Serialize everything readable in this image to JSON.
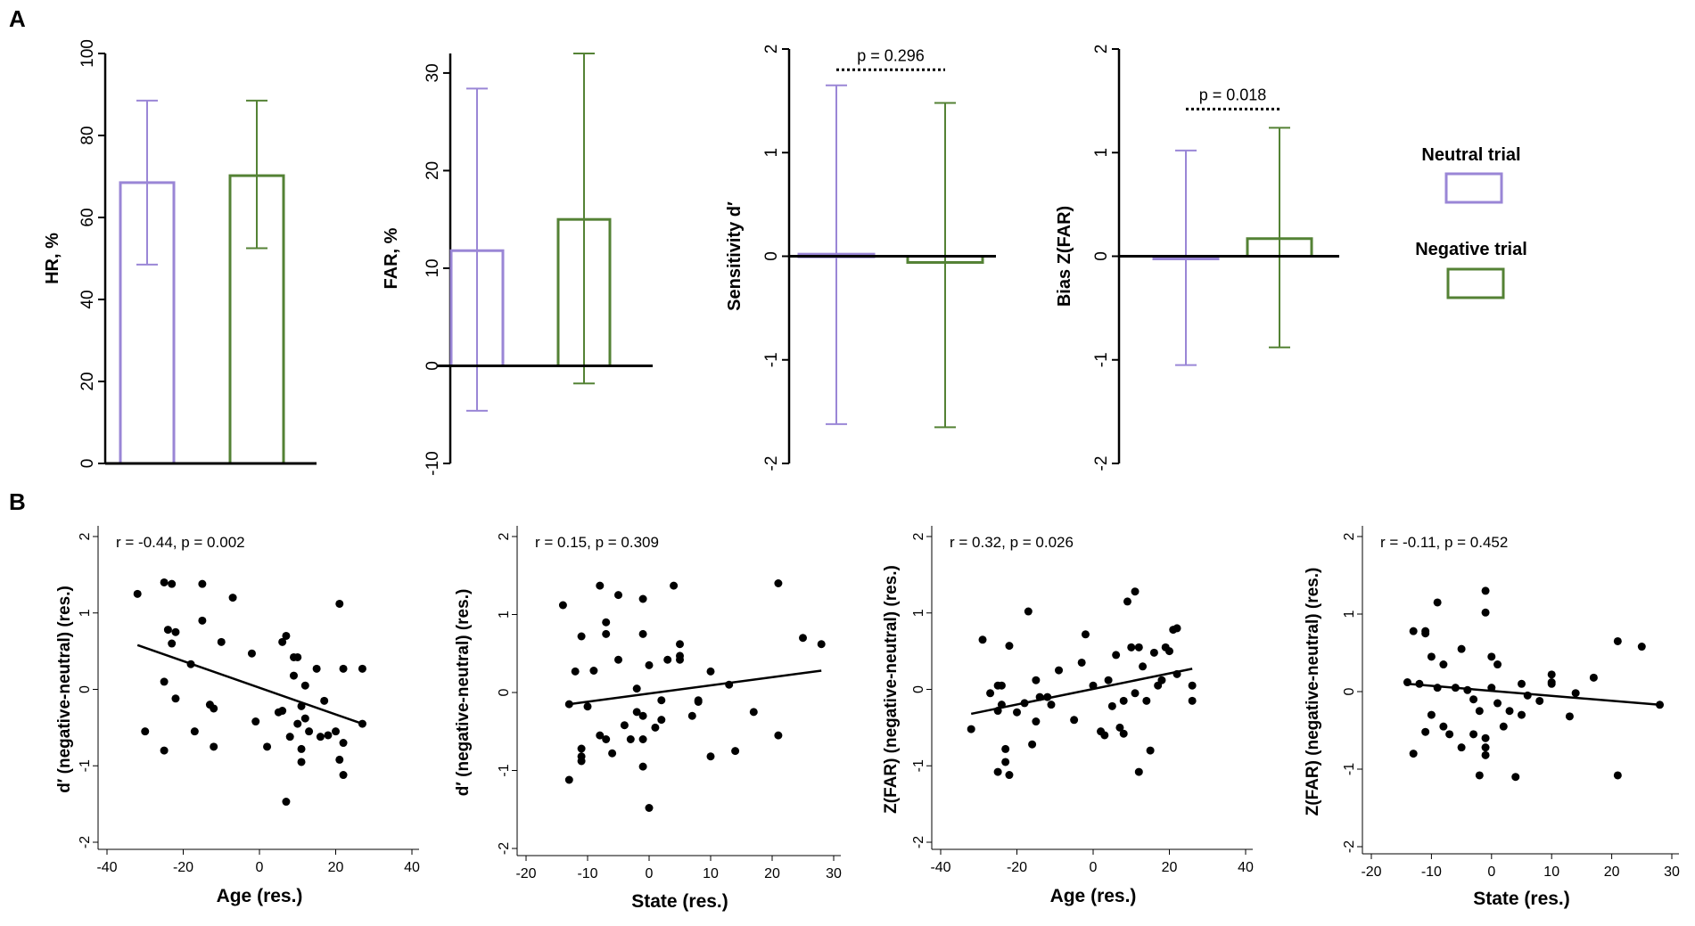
{
  "panel_labels": {
    "a": "A",
    "b": "B"
  },
  "legend": {
    "neutral": {
      "label": "Neutral trial",
      "color": "#9a86d6"
    },
    "negative": {
      "label": "Negative trial",
      "color": "#548235"
    }
  },
  "chart_data": [
    {
      "id": "hr",
      "type": "bar",
      "panel": "A",
      "ylabel": "HR, %",
      "ylim": [
        0,
        100
      ],
      "yticks": [
        0,
        20,
        40,
        60,
        80,
        100
      ],
      "categories": [
        "Neutral trial",
        "Negative trial"
      ],
      "values": [
        68.5,
        70.2
      ],
      "err_low": [
        48.5,
        52.5
      ],
      "err_high": [
        88.5,
        88.5
      ],
      "p_label": ""
    },
    {
      "id": "far",
      "type": "bar",
      "panel": "A",
      "ylabel": "FAR, %",
      "ylim": [
        -10,
        32
      ],
      "yticks": [
        -10,
        0,
        10,
        20,
        30
      ],
      "categories": [
        "Neutral trial",
        "Negative trial"
      ],
      "values": [
        11.8,
        15.0
      ],
      "err_low": [
        -4.6,
        -1.8
      ],
      "err_high": [
        28.4,
        32.0
      ],
      "p_label": ""
    },
    {
      "id": "dprime",
      "type": "bar",
      "panel": "A",
      "ylabel": "Sensitivity d′",
      "ylim": [
        -2,
        2
      ],
      "yticks": [
        -2,
        -1,
        0,
        1,
        2
      ],
      "categories": [
        "Neutral trial",
        "Negative trial"
      ],
      "values": [
        0.02,
        -0.06
      ],
      "err_low": [
        -1.62,
        -1.65
      ],
      "err_high": [
        1.65,
        1.48
      ],
      "p_label": "p = 0.296",
      "p_y": 1.8
    },
    {
      "id": "bias",
      "type": "bar",
      "panel": "A",
      "ylabel": "Bias Z(FAR)",
      "ylim": [
        -2,
        2
      ],
      "yticks": [
        -2,
        -1,
        0,
        1,
        2
      ],
      "categories": [
        "Neutral trial",
        "Negative trial"
      ],
      "values": [
        -0.02,
        0.17
      ],
      "err_low": [
        -1.05,
        -0.88
      ],
      "err_high": [
        1.02,
        1.24
      ],
      "p_label": "p = 0.018",
      "p_y": 1.42
    },
    {
      "id": "dprime_age",
      "type": "scatter",
      "panel": "B",
      "annotation": "r = -0.44, p = 0.002",
      "xlabel": "Age (res.)",
      "ylabel": "d′ (negative-neutral) (res.)",
      "xlim": [
        -40,
        40
      ],
      "ylim": [
        -2,
        2
      ],
      "xticks": [
        -40,
        -20,
        0,
        20,
        40
      ],
      "yticks": [
        -2,
        -1,
        0,
        1,
        2
      ],
      "fit": {
        "x": [
          -32,
          27
        ],
        "y": [
          0.58,
          -0.45
        ]
      },
      "points": [
        [
          -32,
          1.25
        ],
        [
          -30,
          -0.55
        ],
        [
          -25,
          1.4
        ],
        [
          -25,
          0.1
        ],
        [
          -25,
          -0.8
        ],
        [
          -24,
          0.78
        ],
        [
          -23,
          1.38
        ],
        [
          -23,
          0.6
        ],
        [
          -22,
          0.75
        ],
        [
          -22,
          -0.12
        ],
        [
          -18,
          0.33
        ],
        [
          -17,
          -0.55
        ],
        [
          -15,
          1.38
        ],
        [
          -15,
          0.9
        ],
        [
          -13,
          -0.2
        ],
        [
          -12,
          -0.25
        ],
        [
          -12,
          -0.75
        ],
        [
          -10,
          0.62
        ],
        [
          -7,
          1.2
        ],
        [
          -2,
          0.47
        ],
        [
          -1,
          -0.42
        ],
        [
          2,
          -0.75
        ],
        [
          5,
          -0.3
        ],
        [
          6,
          0.62
        ],
        [
          6,
          -0.28
        ],
        [
          7,
          -1.47
        ],
        [
          7,
          0.7
        ],
        [
          8,
          -0.62
        ],
        [
          9,
          0.42
        ],
        [
          9,
          0.18
        ],
        [
          10,
          -0.45
        ],
        [
          10,
          0.42
        ],
        [
          11,
          -0.78
        ],
        [
          11,
          -0.95
        ],
        [
          11,
          -0.22
        ],
        [
          12,
          0.05
        ],
        [
          12,
          -0.38
        ],
        [
          13,
          -0.55
        ],
        [
          15,
          0.27
        ],
        [
          16,
          -0.62
        ],
        [
          17,
          -0.15
        ],
        [
          18,
          -0.6
        ],
        [
          20,
          -0.55
        ],
        [
          21,
          1.12
        ],
        [
          21,
          -0.92
        ],
        [
          22,
          0.27
        ],
        [
          22,
          -1.12
        ],
        [
          22,
          -0.7
        ],
        [
          27,
          0.27
        ],
        [
          27,
          -0.45
        ]
      ]
    },
    {
      "id": "dprime_state",
      "type": "scatter",
      "panel": "B",
      "annotation": "r = 0.15, p = 0.309",
      "xlabel": "State (res.)",
      "ylabel": "d′ (negative-neutral) (res.)",
      "xlim": [
        -20,
        30
      ],
      "ylim": [
        -2,
        2
      ],
      "xticks": [
        -20,
        -10,
        0,
        10,
        20,
        30
      ],
      "yticks": [
        -2,
        -1,
        0,
        1,
        2
      ],
      "fit": {
        "x": [
          -13,
          28
        ],
        "y": [
          -0.15,
          0.28
        ]
      },
      "points": [
        [
          -14,
          1.12
        ],
        [
          -13,
          -1.12
        ],
        [
          -13,
          -0.15
        ],
        [
          -12,
          0.27
        ],
        [
          -11,
          -0.72
        ],
        [
          -11,
          -0.82
        ],
        [
          -11,
          -0.88
        ],
        [
          -11,
          0.72
        ],
        [
          -10,
          -0.18
        ],
        [
          -9,
          0.28
        ],
        [
          -8,
          1.37
        ],
        [
          -8,
          -0.55
        ],
        [
          -7,
          -0.6
        ],
        [
          -7,
          0.9
        ],
        [
          -7,
          0.75
        ],
        [
          -6,
          -0.78
        ],
        [
          -5,
          1.25
        ],
        [
          -5,
          0.42
        ],
        [
          -4,
          -0.42
        ],
        [
          -3,
          -0.6
        ],
        [
          -2,
          0.05
        ],
        [
          -2,
          -0.25
        ],
        [
          -1,
          1.2
        ],
        [
          -1,
          -0.95
        ],
        [
          -1,
          0.75
        ],
        [
          -1,
          -0.3
        ],
        [
          -1,
          -0.6
        ],
        [
          0,
          0.35
        ],
        [
          0,
          -1.48
        ],
        [
          1,
          -0.45
        ],
        [
          2,
          -0.35
        ],
        [
          2,
          -0.1
        ],
        [
          3,
          0.42
        ],
        [
          4,
          1.37
        ],
        [
          5,
          0.62
        ],
        [
          5,
          0.47
        ],
        [
          5,
          0.42
        ],
        [
          7,
          -0.3
        ],
        [
          8,
          -0.1
        ],
        [
          8,
          -0.12
        ],
        [
          10,
          -0.82
        ],
        [
          10,
          0.27
        ],
        [
          13,
          0.1
        ],
        [
          14,
          -0.75
        ],
        [
          17,
          -0.25
        ],
        [
          21,
          1.4
        ],
        [
          21,
          -0.55
        ],
        [
          25,
          0.7
        ],
        [
          28,
          0.62
        ]
      ]
    },
    {
      "id": "zfar_age",
      "type": "scatter",
      "panel": "B",
      "annotation": "r = 0.32, p = 0.026",
      "xlabel": "Age (res.)",
      "ylabel": "Z(FAR) (negative-neutral) (res.)",
      "xlim": [
        -40,
        40
      ],
      "ylim": [
        -2,
        2
      ],
      "xticks": [
        -40,
        -20,
        0,
        20,
        40
      ],
      "yticks": [
        -2,
        -1,
        0,
        1,
        2
      ],
      "fit": {
        "x": [
          -32,
          26
        ],
        "y": [
          -0.32,
          0.27
        ]
      },
      "points": [
        [
          -32,
          -0.52
        ],
        [
          -29,
          0.65
        ],
        [
          -27,
          -0.05
        ],
        [
          -25,
          0.05
        ],
        [
          -25,
          -0.28
        ],
        [
          -25,
          -1.08
        ],
        [
          -24,
          -0.2
        ],
        [
          -24,
          0.05
        ],
        [
          -23,
          -0.95
        ],
        [
          -23,
          -0.78
        ],
        [
          -22,
          0.57
        ],
        [
          -22,
          -1.12
        ],
        [
          -20,
          -0.3
        ],
        [
          -18,
          -0.18
        ],
        [
          -17,
          1.02
        ],
        [
          -16,
          -0.72
        ],
        [
          -15,
          0.12
        ],
        [
          -15,
          -0.42
        ],
        [
          -14,
          -0.1
        ],
        [
          -12,
          -0.1
        ],
        [
          -11,
          -0.2
        ],
        [
          -9,
          0.25
        ],
        [
          -5,
          -0.4
        ],
        [
          -3,
          0.35
        ],
        [
          -2,
          0.72
        ],
        [
          0,
          0.05
        ],
        [
          2,
          -0.55
        ],
        [
          3,
          -0.6
        ],
        [
          4,
          0.12
        ],
        [
          5,
          -0.22
        ],
        [
          6,
          0.45
        ],
        [
          7,
          -0.5
        ],
        [
          8,
          -0.15
        ],
        [
          8,
          -0.58
        ],
        [
          9,
          1.15
        ],
        [
          10,
          0.55
        ],
        [
          11,
          1.28
        ],
        [
          11,
          -0.05
        ],
        [
          12,
          0.55
        ],
        [
          12,
          -1.08
        ],
        [
          13,
          0.3
        ],
        [
          14,
          -0.15
        ],
        [
          15,
          -0.8
        ],
        [
          16,
          0.48
        ],
        [
          17,
          0.05
        ],
        [
          18,
          0.12
        ],
        [
          19,
          0.55
        ],
        [
          20,
          0.5
        ],
        [
          21,
          0.78
        ],
        [
          22,
          0.8
        ],
        [
          22,
          0.2
        ],
        [
          26,
          0.05
        ],
        [
          26,
          -0.15
        ]
      ]
    },
    {
      "id": "zfar_state",
      "type": "scatter",
      "panel": "B",
      "annotation": "r = -0.11, p = 0.452",
      "xlabel": "State (res.)",
      "ylabel": "Z(FAR) (negative-neutral) (res.)",
      "xlim": [
        -20,
        30
      ],
      "ylim": [
        -2,
        2
      ],
      "xticks": [
        -20,
        -10,
        0,
        10,
        20,
        30
      ],
      "yticks": [
        -2,
        -1,
        0,
        1,
        2
      ],
      "fit": {
        "x": [
          -14,
          28
        ],
        "y": [
          0.1,
          -0.17
        ]
      },
      "points": [
        [
          -14,
          0.12
        ],
        [
          -13,
          -0.8
        ],
        [
          -13,
          0.78
        ],
        [
          -12,
          0.1
        ],
        [
          -11,
          0.78
        ],
        [
          -11,
          0.75
        ],
        [
          -11,
          -0.52
        ],
        [
          -10,
          0.45
        ],
        [
          -10,
          -0.3
        ],
        [
          -9,
          1.15
        ],
        [
          -9,
          0.05
        ],
        [
          -8,
          -0.45
        ],
        [
          -8,
          0.35
        ],
        [
          -7,
          -0.55
        ],
        [
          -6,
          0.05
        ],
        [
          -5,
          -0.72
        ],
        [
          -5,
          0.55
        ],
        [
          -4,
          0.02
        ],
        [
          -3,
          -0.1
        ],
        [
          -3,
          -0.55
        ],
        [
          -2,
          -0.25
        ],
        [
          -2,
          -1.08
        ],
        [
          -1,
          1.3
        ],
        [
          -1,
          1.02
        ],
        [
          -1,
          -0.72
        ],
        [
          -1,
          -0.82
        ],
        [
          -1,
          -0.6
        ],
        [
          0,
          0.45
        ],
        [
          0,
          0.05
        ],
        [
          1,
          0.35
        ],
        [
          1,
          -0.15
        ],
        [
          2,
          -0.45
        ],
        [
          3,
          -0.25
        ],
        [
          4,
          -1.1
        ],
        [
          5,
          0.1
        ],
        [
          5,
          -0.3
        ],
        [
          6,
          -0.05
        ],
        [
          8,
          -0.12
        ],
        [
          10,
          0.22
        ],
        [
          10,
          0.1
        ],
        [
          10,
          0.12
        ],
        [
          13,
          -0.32
        ],
        [
          14,
          -0.02
        ],
        [
          17,
          0.18
        ],
        [
          21,
          0.65
        ],
        [
          21,
          -1.08
        ],
        [
          25,
          0.58
        ],
        [
          28,
          -0.17
        ]
      ]
    }
  ]
}
